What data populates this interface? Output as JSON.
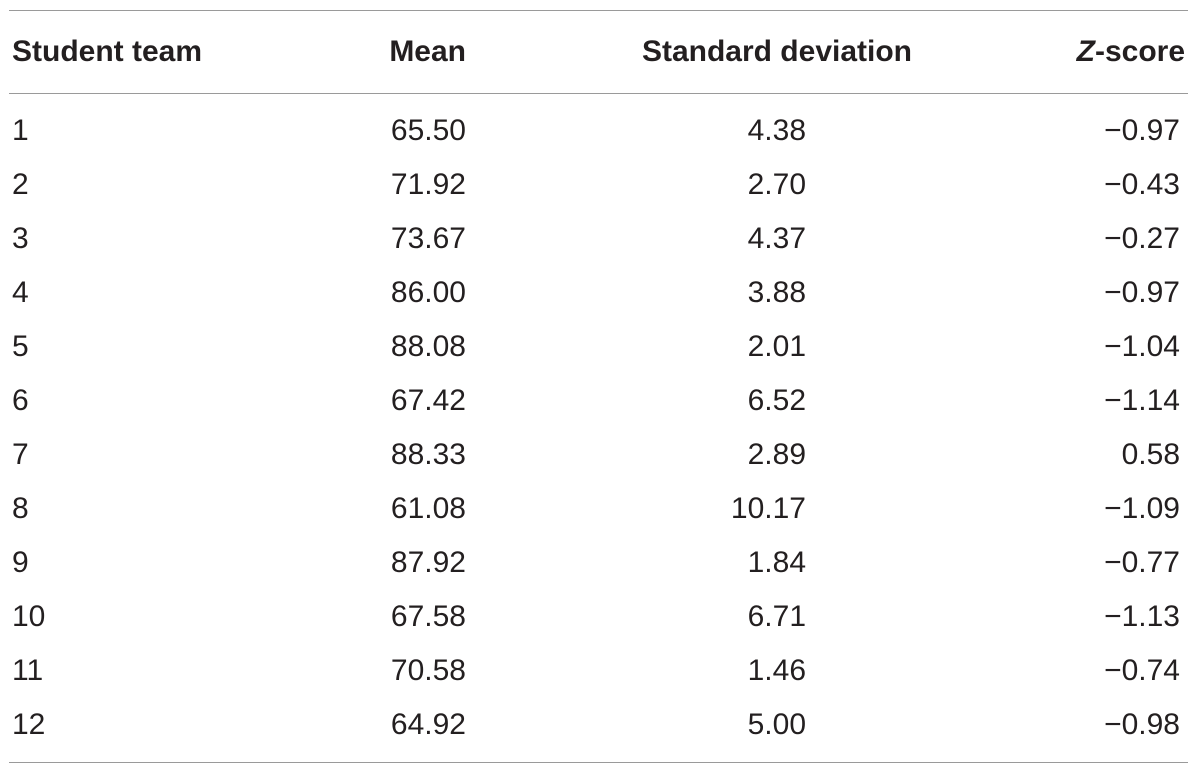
{
  "table": {
    "headers": {
      "team": "Student team",
      "mean": "Mean",
      "sd": "Standard deviation",
      "z_letter": "Z",
      "z_rest": "-score"
    },
    "rows": [
      {
        "team": "1",
        "mean": "65.50",
        "sd": "4.38",
        "z": "−0.97"
      },
      {
        "team": "2",
        "mean": "71.92",
        "sd": "2.70",
        "z": "−0.43"
      },
      {
        "team": "3",
        "mean": "73.67",
        "sd": "4.37",
        "z": "−0.27"
      },
      {
        "team": "4",
        "mean": "86.00",
        "sd": "3.88",
        "z": "−0.97"
      },
      {
        "team": "5",
        "mean": "88.08",
        "sd": "2.01",
        "z": "−1.04"
      },
      {
        "team": "6",
        "mean": "67.42",
        "sd": "6.52",
        "z": "−1.14"
      },
      {
        "team": "7",
        "mean": "88.33",
        "sd": "2.89",
        "z": "0.58"
      },
      {
        "team": "8",
        "mean": "61.08",
        "sd": "10.17",
        "z": "−1.09"
      },
      {
        "team": "9",
        "mean": "87.92",
        "sd": "1.84",
        "z": "−0.77"
      },
      {
        "team": "10",
        "mean": "67.58",
        "sd": "6.71",
        "z": "−1.13"
      },
      {
        "team": "11",
        "mean": "70.58",
        "sd": "1.46",
        "z": "−0.74"
      },
      {
        "team": "12",
        "mean": "64.92",
        "sd": "5.00",
        "z": "−0.98"
      }
    ]
  }
}
